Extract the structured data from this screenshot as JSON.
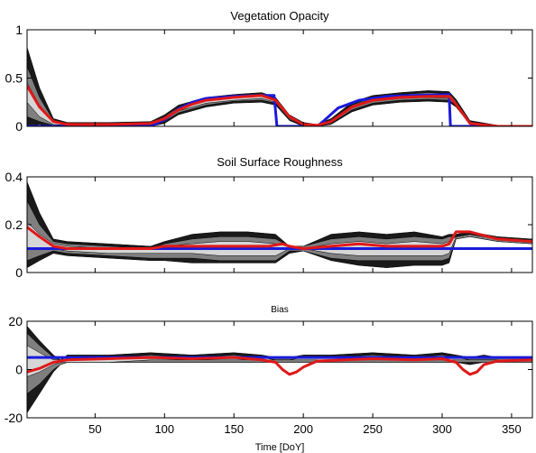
{
  "chart_data": [
    {
      "type": "area",
      "title": "Vegetation Opacity",
      "xlim": [
        1,
        365
      ],
      "ylim": [
        0,
        1
      ],
      "yticks": [
        0,
        0.5,
        1
      ],
      "ytick_labels": [
        "0",
        "0.5",
        "1"
      ],
      "xticks": [
        50,
        100,
        150,
        200,
        250,
        300,
        350
      ],
      "xtick_labels": [],
      "colors": {
        "truth": "#1a1adb",
        "estimate": "#e01818",
        "band_outer": "#1a1a1a",
        "band_mid": "#7f7f7f",
        "band_inner": "#d6d6d6"
      },
      "bands": {
        "x": [
          1,
          10,
          20,
          30,
          60,
          90,
          100,
          110,
          130,
          150,
          170,
          180,
          190,
          200,
          210,
          220,
          235,
          250,
          270,
          290,
          305,
          310,
          320,
          340,
          365
        ],
        "outer": {
          "upper": [
            0.82,
            0.4,
            0.08,
            0.04,
            0.04,
            0.05,
            0.12,
            0.22,
            0.3,
            0.33,
            0.35,
            0.3,
            0.12,
            0.04,
            0.02,
            0.08,
            0.25,
            0.32,
            0.35,
            0.37,
            0.36,
            0.28,
            0.06,
            0.01,
            0.0
          ],
          "lower": [
            0.0,
            0.02,
            0.0,
            0.0,
            0.0,
            0.0,
            0.03,
            0.12,
            0.2,
            0.24,
            0.25,
            0.22,
            0.06,
            0.0,
            0.0,
            0.02,
            0.15,
            0.22,
            0.25,
            0.26,
            0.25,
            0.2,
            0.02,
            0.0,
            0.0
          ]
        },
        "mid": {
          "upper": [
            0.62,
            0.3,
            0.06,
            0.03,
            0.03,
            0.04,
            0.1,
            0.2,
            0.28,
            0.31,
            0.33,
            0.28,
            0.1,
            0.03,
            0.01,
            0.06,
            0.22,
            0.3,
            0.33,
            0.35,
            0.34,
            0.26,
            0.05,
            0.01,
            0.0
          ],
          "lower": [
            0.1,
            0.05,
            0.01,
            0.0,
            0.0,
            0.01,
            0.05,
            0.14,
            0.22,
            0.26,
            0.27,
            0.24,
            0.07,
            0.01,
            0.0,
            0.03,
            0.17,
            0.24,
            0.27,
            0.28,
            0.27,
            0.22,
            0.03,
            0.0,
            0.0
          ]
        },
        "inner": {
          "upper": [
            0.45,
            0.22,
            0.05,
            0.02,
            0.02,
            0.03,
            0.09,
            0.18,
            0.27,
            0.3,
            0.32,
            0.27,
            0.09,
            0.02,
            0.01,
            0.05,
            0.21,
            0.29,
            0.32,
            0.33,
            0.32,
            0.25,
            0.04,
            0.0,
            0.0
          ],
          "lower": [
            0.25,
            0.1,
            0.02,
            0.01,
            0.01,
            0.02,
            0.07,
            0.16,
            0.24,
            0.27,
            0.29,
            0.25,
            0.08,
            0.01,
            0.0,
            0.04,
            0.19,
            0.26,
            0.29,
            0.3,
            0.29,
            0.23,
            0.03,
            0.0,
            0.0
          ]
        }
      },
      "series": [
        {
          "role": "truth",
          "x": [
            1,
            90,
            100,
            110,
            120,
            130,
            150,
            170,
            179,
            181,
            210,
            215,
            225,
            240,
            260,
            280,
            305,
            306,
            365
          ],
          "values": [
            0.0,
            0.0,
            0.07,
            0.18,
            0.25,
            0.29,
            0.31,
            0.32,
            0.32,
            0.0,
            0.0,
            0.06,
            0.19,
            0.27,
            0.31,
            0.32,
            0.33,
            0.0,
            0.0
          ]
        },
        {
          "role": "estimate",
          "x": [
            1,
            10,
            20,
            30,
            60,
            90,
            100,
            110,
            120,
            130,
            150,
            170,
            180,
            190,
            200,
            210,
            220,
            235,
            250,
            270,
            290,
            305,
            310,
            320,
            340,
            365
          ],
          "values": [
            0.42,
            0.2,
            0.05,
            0.02,
            0.02,
            0.03,
            0.08,
            0.17,
            0.23,
            0.27,
            0.3,
            0.32,
            0.27,
            0.1,
            0.02,
            0.01,
            0.05,
            0.2,
            0.27,
            0.3,
            0.31,
            0.31,
            0.23,
            0.03,
            0.0,
            0.0
          ]
        }
      ]
    },
    {
      "type": "area",
      "title": "Soil Surface Roughness",
      "xlim": [
        1,
        365
      ],
      "ylim": [
        0,
        0.4
      ],
      "yticks": [
        0,
        0.2,
        0.4
      ],
      "ytick_labels": [
        "0",
        "0.2",
        "0.4"
      ],
      "xticks": [
        50,
        100,
        150,
        200,
        250,
        300,
        350
      ],
      "xtick_labels": [],
      "colors": {
        "truth": "#1a1adb",
        "estimate": "#e01818",
        "band_outer": "#1a1a1a",
        "band_mid": "#7f7f7f",
        "band_inner": "#d6d6d6"
      },
      "bands": {
        "x": [
          1,
          10,
          20,
          30,
          60,
          90,
          100,
          120,
          140,
          160,
          180,
          190,
          200,
          220,
          240,
          260,
          280,
          300,
          305,
          310,
          320,
          340,
          365
        ],
        "outer": {
          "upper": [
            0.38,
            0.25,
            0.14,
            0.13,
            0.12,
            0.11,
            0.13,
            0.16,
            0.17,
            0.17,
            0.16,
            0.11,
            0.11,
            0.16,
            0.17,
            0.16,
            0.17,
            0.15,
            0.16,
            0.16,
            0.17,
            0.15,
            0.14
          ],
          "lower": [
            0.02,
            0.05,
            0.08,
            0.07,
            0.06,
            0.05,
            0.05,
            0.04,
            0.04,
            0.04,
            0.04,
            0.08,
            0.09,
            0.05,
            0.03,
            0.02,
            0.03,
            0.03,
            0.04,
            0.14,
            0.15,
            0.13,
            0.12
          ]
        },
        "mid": {
          "upper": [
            0.3,
            0.2,
            0.13,
            0.12,
            0.11,
            0.1,
            0.12,
            0.14,
            0.15,
            0.15,
            0.14,
            0.11,
            0.11,
            0.14,
            0.15,
            0.14,
            0.15,
            0.14,
            0.15,
            0.15,
            0.16,
            0.14,
            0.13
          ],
          "lower": [
            0.05,
            0.07,
            0.09,
            0.08,
            0.07,
            0.06,
            0.06,
            0.06,
            0.05,
            0.05,
            0.05,
            0.09,
            0.09,
            0.06,
            0.05,
            0.05,
            0.05,
            0.05,
            0.06,
            0.14,
            0.15,
            0.13,
            0.12
          ]
        },
        "inner": {
          "upper": [
            0.21,
            0.16,
            0.12,
            0.11,
            0.1,
            0.1,
            0.11,
            0.12,
            0.13,
            0.13,
            0.12,
            0.11,
            0.1,
            0.12,
            0.13,
            0.12,
            0.13,
            0.12,
            0.13,
            0.15,
            0.16,
            0.14,
            0.13
          ],
          "lower": [
            0.1,
            0.1,
            0.1,
            0.09,
            0.08,
            0.08,
            0.08,
            0.08,
            0.07,
            0.07,
            0.07,
            0.1,
            0.1,
            0.08,
            0.07,
            0.07,
            0.07,
            0.07,
            0.08,
            0.15,
            0.16,
            0.14,
            0.13
          ]
        }
      },
      "series": [
        {
          "role": "truth",
          "x": [
            1,
            365
          ],
          "values": [
            0.1,
            0.1
          ]
        },
        {
          "role": "estimate",
          "x": [
            1,
            10,
            20,
            30,
            60,
            90,
            100,
            120,
            140,
            160,
            175,
            185,
            190,
            200,
            220,
            240,
            260,
            280,
            300,
            305,
            310,
            320,
            340,
            365
          ],
          "values": [
            0.19,
            0.15,
            0.11,
            0.1,
            0.1,
            0.1,
            0.11,
            0.11,
            0.11,
            0.11,
            0.11,
            0.12,
            0.11,
            0.1,
            0.11,
            0.12,
            0.11,
            0.11,
            0.11,
            0.12,
            0.17,
            0.17,
            0.14,
            0.13
          ]
        }
      ]
    },
    {
      "type": "area",
      "title": "Bias",
      "xlim": [
        1,
        365
      ],
      "ylim": [
        -20,
        20
      ],
      "yticks": [
        -20,
        0,
        20
      ],
      "ytick_labels": [
        "-20",
        "0",
        "20"
      ],
      "xticks": [
        50,
        100,
        150,
        200,
        250,
        300,
        350
      ],
      "xtick_labels": [
        "50",
        "100",
        "150",
        "200",
        "250",
        "300",
        "350"
      ],
      "xlabel": "Time [DoY]",
      "colors": {
        "truth": "#1a1adb",
        "estimate": "#e01818",
        "band_outer": "#1a1a1a",
        "band_mid": "#7f7f7f",
        "band_inner": "#d6d6d6"
      },
      "bands": {
        "x": [
          1,
          10,
          20,
          25,
          30,
          60,
          90,
          120,
          150,
          170,
          180,
          190,
          200,
          220,
          250,
          280,
          300,
          310,
          320,
          330,
          340,
          365
        ],
        "outer": {
          "upper": [
            18,
            12,
            6,
            4,
            6,
            6,
            7,
            6,
            7,
            6,
            5,
            5,
            6,
            6,
            7,
            6,
            7,
            6,
            5,
            6,
            5,
            5
          ],
          "lower": [
            -18,
            -10,
            -1,
            2,
            3,
            3,
            3,
            3,
            3,
            3,
            3,
            3,
            3,
            3,
            3,
            3,
            3,
            3,
            2,
            3,
            3,
            3
          ]
        },
        "mid": {
          "upper": [
            15,
            10,
            5,
            4,
            5,
            5,
            6,
            5,
            6,
            5,
            5,
            5,
            5,
            5,
            6,
            5,
            6,
            5,
            5,
            5,
            5,
            5
          ],
          "lower": [
            -10,
            -6,
            0,
            2,
            3,
            3,
            3,
            3,
            3,
            3,
            3,
            3,
            3,
            3,
            3,
            3,
            3,
            3,
            3,
            3,
            3,
            3
          ]
        },
        "inner": {
          "upper": [
            10,
            7,
            4,
            4,
            5,
            5,
            5,
            5,
            5,
            5,
            4,
            4,
            5,
            5,
            5,
            5,
            5,
            5,
            4,
            4,
            4,
            4
          ],
          "lower": [
            -3,
            -1,
            2,
            3,
            3,
            3,
            4,
            4,
            4,
            4,
            4,
            4,
            4,
            4,
            4,
            4,
            4,
            4,
            4,
            4,
            4,
            4
          ]
        }
      },
      "series": [
        {
          "role": "truth",
          "x": [
            1,
            365
          ],
          "values": [
            5,
            5
          ]
        },
        {
          "role": "estimate",
          "x": [
            1,
            10,
            20,
            30,
            60,
            90,
            120,
            150,
            170,
            180,
            185,
            190,
            195,
            200,
            210,
            230,
            250,
            280,
            300,
            310,
            315,
            320,
            325,
            330,
            340,
            365
          ],
          "values": [
            -1,
            0.5,
            3,
            4,
            4.5,
            5,
            4.5,
            5,
            4,
            3,
            0,
            -2,
            -1,
            1,
            3.5,
            4,
            4.5,
            4,
            4.5,
            3,
            0,
            -2,
            -1,
            2,
            3.5,
            4
          ]
        }
      ]
    }
  ]
}
